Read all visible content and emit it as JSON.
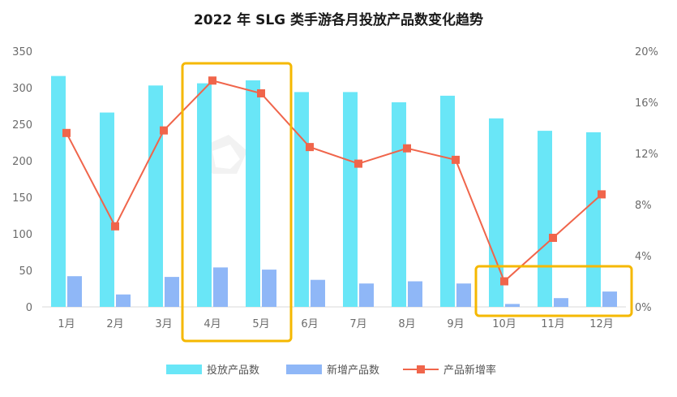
{
  "chart_data": {
    "type": "bar",
    "title": "2022 年 SLG 类手游各月投放产品数变化趋势",
    "categories": [
      "1月",
      "2月",
      "3月",
      "4月",
      "5月",
      "6月",
      "7月",
      "8月",
      "9月",
      "10月",
      "11月",
      "12月"
    ],
    "series": [
      {
        "name": "投放产品数",
        "type": "bar",
        "axis": "left",
        "color": "#69E6F7",
        "values": [
          316,
          266,
          303,
          306,
          310,
          294,
          294,
          280,
          289,
          258,
          241,
          239
        ]
      },
      {
        "name": "新增产品数",
        "type": "bar",
        "axis": "left",
        "color": "#8FB7F7",
        "values": [
          42,
          17,
          41,
          54,
          51,
          37,
          32,
          35,
          32,
          4,
          12,
          21
        ]
      },
      {
        "name": "产品新增率",
        "type": "line",
        "axis": "right",
        "color": "#F0654B",
        "values": [
          13.6,
          6.3,
          13.8,
          17.7,
          16.7,
          12.5,
          11.2,
          12.4,
          11.5,
          2.0,
          5.4,
          8.8
        ]
      }
    ],
    "y_left": {
      "min": 0,
      "max": 350,
      "ticks": [
        0,
        50,
        100,
        150,
        200,
        250,
        300,
        350
      ]
    },
    "y_right": {
      "min": 0,
      "max": 20,
      "ticks": [
        "0%",
        "4%",
        "8%",
        "12%",
        "16%",
        "20%"
      ]
    },
    "legend_position": "bottom",
    "grid": false,
    "highlight_color": "#F5B800"
  }
}
